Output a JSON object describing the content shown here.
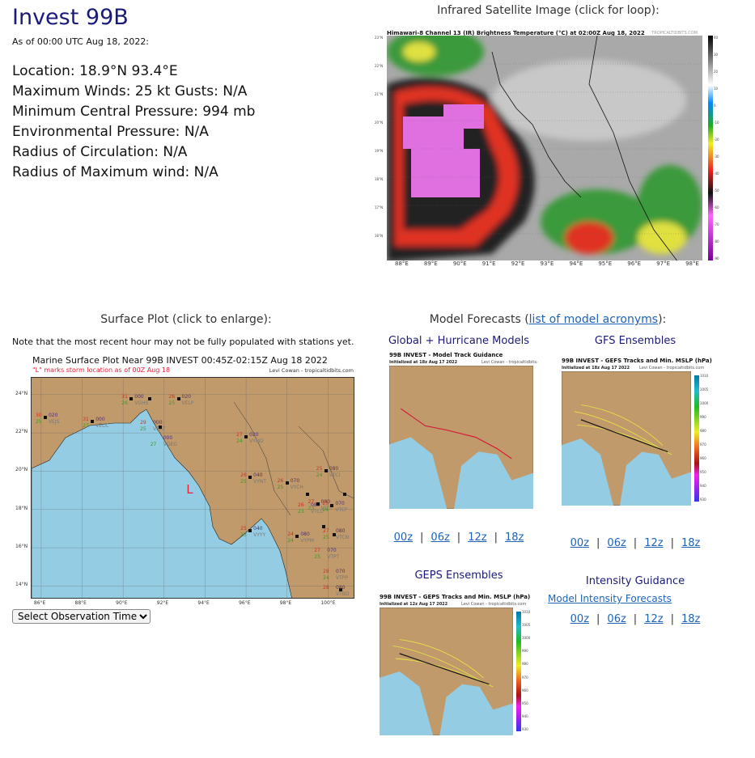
{
  "storm": {
    "title": "Invest 99B",
    "as_of": "As of 00:00 UTC Aug 18, 2022:",
    "lines": [
      "Location: 18.9°N 93.4°E",
      "Maximum Winds: 25 kt  Gusts: N/A",
      "Minimum Central Pressure: 994 mb",
      "Environmental Pressure: N/A",
      "Radius of Circulation: N/A",
      "Radius of Maximum wind: N/A"
    ]
  },
  "satellite": {
    "heading": "Infrared Satellite Image (click for loop):",
    "image_title": "Himawari-8 Channel 13 (IR) Brightness Temperature (°C) at 02:00Z Aug 18, 2022",
    "credit": "TROPICALTIDBITS.COM",
    "lat_ticks": [
      "23°N",
      "22°N",
      "21°N",
      "20°N",
      "19°N",
      "18°N",
      "17°N",
      "16°N"
    ],
    "lon_ticks": [
      "88°E",
      "89°E",
      "90°E",
      "91°E",
      "92°E",
      "93°E",
      "94°E",
      "95°E",
      "96°E",
      "97°E",
      "98°E"
    ],
    "colorbar_ticks": [
      "40",
      "30",
      "20",
      "10",
      "0",
      "-10",
      "-20",
      "-30",
      "-40",
      "-50",
      "-60",
      "-70",
      "-80",
      "-90"
    ]
  },
  "surface": {
    "heading": "Surface Plot (click to enlarge):",
    "note": "Note that the most recent hour may not be fully populated with stations yet.",
    "plot_title": "Marine Surface Plot Near 99B INVEST 00:45Z-02:15Z Aug 18 2022",
    "storm_note": "\"L\" marks storm location as of 00Z Aug 18",
    "credit": "Levi Cowan - tropicaltidbits.com",
    "lat_ticks": [
      {
        "label": "24°N",
        "v": 24
      },
      {
        "label": "22°N",
        "v": 22
      },
      {
        "label": "20°N",
        "v": 20
      },
      {
        "label": "18°N",
        "v": 18
      },
      {
        "label": "16°N",
        "v": 16
      },
      {
        "label": "14°N",
        "v": 14
      }
    ],
    "lon_ticks": [
      {
        "label": "86°E",
        "v": 86
      },
      {
        "label": "88°E",
        "v": 88
      },
      {
        "label": "90°E",
        "v": 90
      },
      {
        "label": "92°E",
        "v": 92
      },
      {
        "label": "94°E",
        "v": 94
      },
      {
        "label": "96°E",
        "v": 96
      },
      {
        "label": "98°E",
        "v": 98
      },
      {
        "label": "100°E",
        "v": 100
      }
    ],
    "storm_marker": {
      "label": "L",
      "lat": 18.9,
      "lon": 93.4
    },
    "stations": [
      {
        "id": "VEJS",
        "t": "30",
        "d": "25",
        "p": "020",
        "lon": 86.2,
        "lat": 22.8
      },
      {
        "id": "VECC",
        "t": "31",
        "d": "27",
        "p": "000",
        "lon": 88.5,
        "lat": 22.6
      },
      {
        "id": "VGHS",
        "t": "31",
        "d": "26",
        "p": "000",
        "lon": 90.4,
        "lat": 23.8
      },
      {
        "id": "VEAT",
        "t": "29",
        "d": "25",
        "p": "000",
        "lon": 91.3,
        "lat": 23.8
      },
      {
        "id": "VELP",
        "t": "26",
        "d": "25",
        "p": "020",
        "lon": 92.7,
        "lat": 23.8
      },
      {
        "id": "VGEG",
        "t": "",
        "d": "27",
        "p": "000",
        "lon": 91.8,
        "lat": 22.3
      },
      {
        "id": "VYMD",
        "t": "27",
        "d": "24",
        "p": "020",
        "lon": 96.0,
        "lat": 21.8
      },
      {
        "id": "VYNT",
        "t": "26",
        "d": "25",
        "p": "040",
        "lon": 96.2,
        "lat": 19.7
      },
      {
        "id": "VYCH",
        "t": "26",
        "d": "25",
        "p": "070",
        "lon": 98.0,
        "lat": 19.4
      },
      {
        "id": "VTCI",
        "t": "25",
        "d": "24",
        "p": "080",
        "lon": 99.9,
        "lat": 20.0
      },
      {
        "id": "VTCC",
        "t": "26",
        "d": "23",
        "p": "080",
        "lon": 99.0,
        "lat": 18.8
      },
      {
        "id": "VTCN",
        "t": "27",
        "d": "25",
        "p": "080",
        "lon": 100.8,
        "lat": 18.8
      },
      {
        "id": "VTCL",
        "t": "27",
        "d": "23",
        "p": "080",
        "lon": 99.5,
        "lat": 18.3
      },
      {
        "id": "VTCP",
        "t": "25",
        "d": "24",
        "p": "070",
        "lon": 100.2,
        "lat": 18.2
      },
      {
        "id": "VYYY",
        "t": "25",
        "d": "23",
        "p": "040",
        "lon": 96.2,
        "lat": 16.9
      },
      {
        "id": "VYPM",
        "t": "24",
        "d": "24",
        "p": "080",
        "lon": 98.5,
        "lat": 16.6
      },
      {
        "id": "VTPT",
        "t": "27",
        "d": "25",
        "p": "070",
        "lon": 99.8,
        "lat": 17.1
      },
      {
        "id": "VTPP",
        "t": "28",
        "d": "24",
        "p": "070",
        "lon": 100.3,
        "lat": 16.7
      },
      {
        "id": "VTBD",
        "t": "28",
        "d": "",
        "p": "080",
        "lon": 100.6,
        "lat": 13.8
      }
    ],
    "select_label": "Select Observation Time..."
  },
  "models": {
    "heading_prefix": "Model Forecasts (",
    "heading_link": "list of model acronyms",
    "heading_suffix": "):",
    "global": {
      "heading": "Global + Hurricane Models",
      "title": "99B INVEST - Model Track Guidance",
      "init": "Initialized at 18z Aug 17 2022",
      "credit": "Levi Cowan - tropicaltidbits.com",
      "links": [
        "00z",
        "06z",
        "12z",
        "18z"
      ]
    },
    "gfs": {
      "heading": "GFS Ensembles",
      "title": "99B INVEST - GEFS Tracks and Min. MSLP (hPa)",
      "init": "Initialized at 18z Aug 17 2022",
      "credit": "Levi Cowan - tropicaltidbits.com",
      "links": [
        "00z",
        "06z",
        "12z",
        "18z"
      ]
    },
    "geps": {
      "heading": "GEPS Ensembles",
      "title": "99B INVEST - GEPS Tracks and Min. MSLP (hPa)",
      "init": "Initialized at 12z Aug 17 2022",
      "credit": "Levi Cowan - tropicaltidbits.com"
    },
    "intensity": {
      "heading": "Intensity Guidance",
      "link": "Model Intensity Forecasts",
      "links": [
        "00z",
        "06z",
        "12z",
        "18z"
      ]
    },
    "mslp_ticks": [
      "1010",
      "1005",
      "1000",
      "990",
      "980",
      "970",
      "960",
      "950",
      "940",
      "930"
    ]
  },
  "colors": {
    "title_navy": "#1a1a7a",
    "link": "#1e63b8",
    "land": "#c19a6b",
    "sea": "#94cde3",
    "storm_red": "#e8203a"
  }
}
